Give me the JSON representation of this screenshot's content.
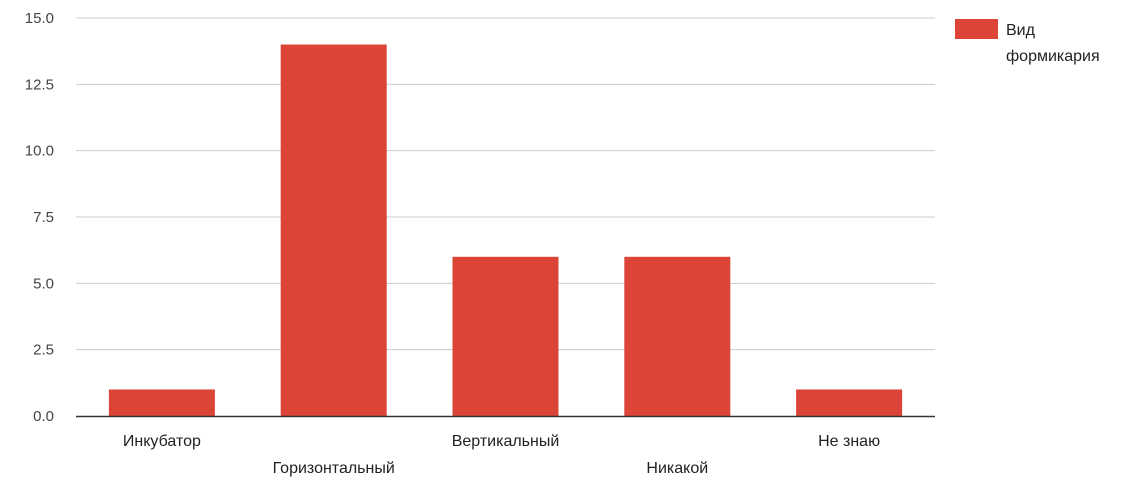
{
  "chart_data": {
    "type": "bar",
    "categories": [
      "Инкубатор",
      "Горизонтальный",
      "Вертикальный",
      "Никакой",
      "Не знаю"
    ],
    "series": [
      {
        "name": "Вид формикария",
        "values": [
          1,
          14,
          6,
          6,
          1
        ],
        "color": "#db4437"
      }
    ],
    "yticks": [
      "0.0",
      "2.5",
      "5.0",
      "7.5",
      "10.0",
      "12.5",
      "15.0"
    ],
    "ylim": [
      0,
      15
    ],
    "grid": true,
    "legend": {
      "position": "right",
      "lines": [
        "Вид",
        "формикария"
      ]
    },
    "title": "",
    "xlabel": "",
    "ylabel": ""
  }
}
